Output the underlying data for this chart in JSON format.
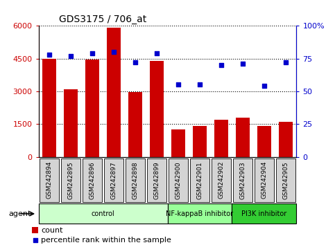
{
  "title": "GDS3175 / 706_at",
  "samples": [
    "GSM242894",
    "GSM242895",
    "GSM242896",
    "GSM242897",
    "GSM242898",
    "GSM242899",
    "GSM242900",
    "GSM242901",
    "GSM242902",
    "GSM242903",
    "GSM242904",
    "GSM242905"
  ],
  "counts": [
    4500,
    3100,
    4450,
    5900,
    2950,
    4400,
    1250,
    1400,
    1700,
    1800,
    1400,
    1600
  ],
  "percentiles": [
    78,
    77,
    79,
    80,
    72,
    79,
    55,
    55,
    70,
    71,
    54,
    72
  ],
  "bar_color": "#cc0000",
  "dot_color": "#0000cc",
  "ylim_left": [
    0,
    6000
  ],
  "ylim_right": [
    0,
    100
  ],
  "yticks_left": [
    0,
    1500,
    3000,
    4500,
    6000
  ],
  "yticks_right": [
    0,
    25,
    50,
    75,
    100
  ],
  "ytick_labels_left": [
    "0",
    "1500",
    "3000",
    "4500",
    "6000"
  ],
  "ytick_labels_right": [
    "0",
    "25",
    "50",
    "75",
    "100%"
  ],
  "groups": [
    {
      "label": "control",
      "start": 0,
      "end": 6,
      "color": "#ccffcc"
    },
    {
      "label": "NF-kappaB inhibitor",
      "start": 6,
      "end": 9,
      "color": "#99ff99"
    },
    {
      "label": "PI3K inhibitor",
      "start": 9,
      "end": 12,
      "color": "#33cc33"
    }
  ],
  "sample_box_color": "#d4d4d4",
  "agent_label": "agent",
  "legend_count_label": "count",
  "legend_pct_label": "percentile rank within the sample",
  "background_color": "#ffffff",
  "plot_bg_color": "#ffffff",
  "tick_label_color_left": "#cc0000",
  "tick_label_color_right": "#0000cc"
}
